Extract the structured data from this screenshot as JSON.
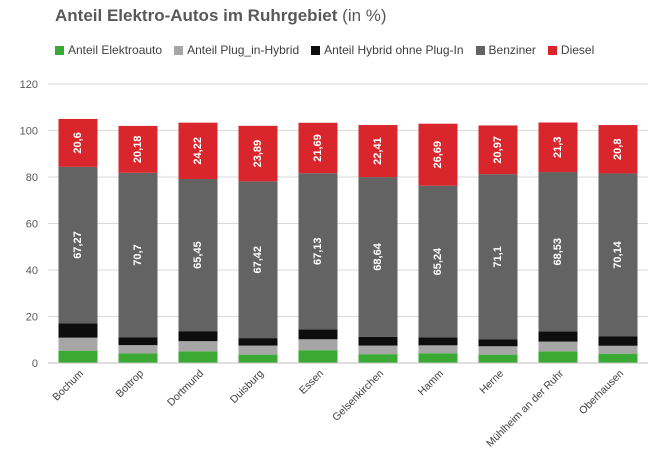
{
  "chart_data": {
    "type": "bar",
    "stacked": true,
    "title": "Anteil Elektro-Autos im Ruhrgebiet",
    "title_suffix": "(in %)",
    "xlabel": "",
    "ylabel": "",
    "ylim": [
      0,
      120
    ],
    "yticks": [
      0,
      20,
      40,
      60,
      80,
      100,
      120
    ],
    "grid": true,
    "legend_position": "top",
    "categories": [
      "Bochum",
      "Bottrop",
      "Dortmund",
      "Duisburg",
      "Essen",
      "Gelsenkirchen",
      "Hamm",
      "Herne",
      "Mühlheim an der Ruhr",
      "Oberhausen"
    ],
    "series": [
      {
        "name": "Anteil Elektroauto",
        "color": "#3aaa35",
        "show_labels": false,
        "values": [
          5.3,
          4.1,
          5.0,
          3.6,
          5.5,
          3.8,
          4.2,
          3.6,
          5.0,
          4.0
        ]
      },
      {
        "name": "Anteil Plug_in-Hybrid",
        "color": "#a6a6a6",
        "show_labels": false,
        "values": [
          5.6,
          3.6,
          4.4,
          3.9,
          4.7,
          3.7,
          3.4,
          3.6,
          4.2,
          3.4
        ]
      },
      {
        "name": "Anteil Hybrid ohne Plug-In",
        "color": "#0d0d0d",
        "show_labels": false,
        "values": [
          6.2,
          3.4,
          4.3,
          3.2,
          4.3,
          3.8,
          3.4,
          2.9,
          4.4,
          4.0
        ]
      },
      {
        "name": "Benziner",
        "color": "#636363",
        "show_labels": true,
        "values": [
          67.27,
          70.7,
          65.45,
          67.42,
          67.13,
          68.64,
          65.24,
          71.1,
          68.53,
          70.14
        ],
        "labels": [
          "67,27",
          "70,7",
          "65,45",
          "67,42",
          "67,13",
          "68,64",
          "65,24",
          "71,1",
          "68,53",
          "70,14"
        ]
      },
      {
        "name": "Diesel",
        "color": "#d9262c",
        "show_labels": true,
        "values": [
          20.6,
          20.18,
          24.22,
          23.89,
          21.69,
          22.41,
          26.69,
          20.97,
          21.3,
          20.8
        ],
        "labels": [
          "20,6",
          "20,18",
          "24,22",
          "23,89",
          "21,69",
          "22,41",
          "26,69",
          "20,97",
          "21,3",
          "20,8"
        ]
      }
    ]
  }
}
